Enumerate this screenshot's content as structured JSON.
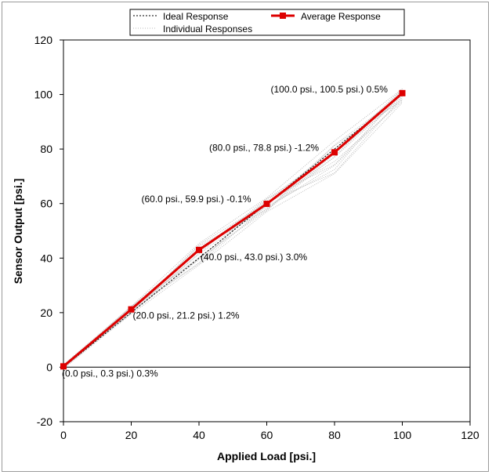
{
  "chart_data": {
    "type": "line",
    "xlabel": "Applied Load [psi.]",
    "ylabel": "Sensor Output [psi.]",
    "xlim": [
      0,
      120
    ],
    "ylim": [
      -20,
      120
    ],
    "xticks": [
      0,
      20,
      40,
      60,
      80,
      100,
      120
    ],
    "yticks": [
      -20,
      0,
      20,
      40,
      60,
      80,
      100,
      120
    ],
    "grid": false,
    "legend_position": "top-center",
    "series": [
      {
        "name": "Ideal Response",
        "style": "dashed",
        "color": "#000000",
        "x": [
          0,
          100
        ],
        "y": [
          0,
          100
        ]
      },
      {
        "name": "Average Response",
        "style": "solid-square-markers",
        "color": "#dd0000",
        "x": [
          0,
          20,
          40,
          60,
          80,
          100
        ],
        "y": [
          0.3,
          21.2,
          43.0,
          59.9,
          78.8,
          100.5
        ]
      },
      {
        "name": "Individual Responses",
        "style": "dotted",
        "color": "#b8b8b8",
        "x": [
          0,
          20,
          40,
          60,
          80,
          100
        ],
        "y_band": [
          [
            -0.5,
            1.0
          ],
          [
            19.5,
            22.5
          ],
          [
            37.5,
            46.0
          ],
          [
            57.0,
            62.5
          ],
          [
            71.0,
            84.0
          ],
          [
            97.0,
            102.5
          ]
        ]
      }
    ],
    "annotations": [
      {
        "x": 0,
        "y": 0.3,
        "text": "(0.0 psi., 0.3 psi.) 0.3%"
      },
      {
        "x": 20,
        "y": 21.2,
        "text": "(20.0 psi., 21.2 psi.) 1.2%"
      },
      {
        "x": 40,
        "y": 43.0,
        "text": "(40.0 psi., 43.0 psi.) 3.0%"
      },
      {
        "x": 60,
        "y": 59.9,
        "text": "(60.0 psi., 59.9 psi.) -0.1%"
      },
      {
        "x": 80,
        "y": 78.8,
        "text": "(80.0 psi., 78.8 psi.) -1.2%"
      },
      {
        "x": 100,
        "y": 100.5,
        "text": "(100.0 psi., 100.5 psi.) 0.5%"
      }
    ]
  }
}
